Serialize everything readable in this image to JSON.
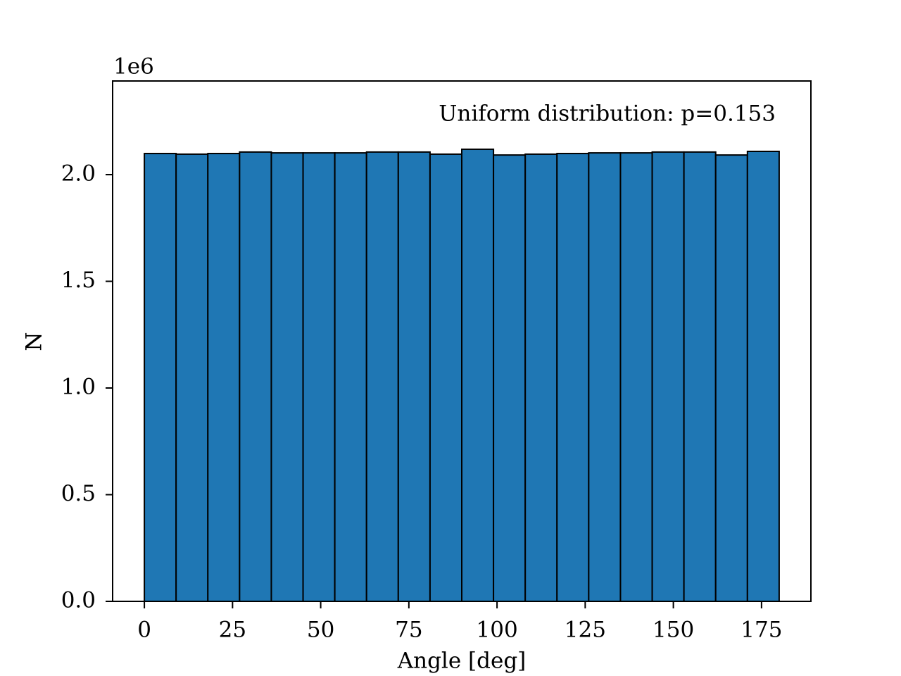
{
  "chart_data": {
    "type": "histogram",
    "xlabel": "Angle [deg]",
    "ylabel": "N",
    "y_offset_label": "1e6",
    "annotation": "Uniform distribution: p=0.153",
    "bins": [
      0,
      9,
      18,
      27,
      36,
      45,
      54,
      63,
      72,
      81,
      90,
      99,
      108,
      117,
      126,
      135,
      144,
      153,
      162,
      171,
      180
    ],
    "values": [
      2099000,
      2096000,
      2099000,
      2106000,
      2102000,
      2102000,
      2102000,
      2106000,
      2106000,
      2096000,
      2119000,
      2092000,
      2096000,
      2099000,
      2102000,
      2102000,
      2106000,
      2106000,
      2092000,
      2109000
    ],
    "color": "#1f77b4",
    "edgecolor": "#000000",
    "xlim": [
      -9,
      189
    ],
    "xticks": [
      0,
      25,
      50,
      75,
      100,
      125,
      150,
      175
    ],
    "ylim": [
      0,
      2439000
    ],
    "yticks": [
      {
        "value": 0,
        "label": "0.0"
      },
      {
        "value": 500000,
        "label": "0.5"
      },
      {
        "value": 1000000,
        "label": "1.0"
      },
      {
        "value": 1500000,
        "label": "1.5"
      },
      {
        "value": 2000000,
        "label": "2.0"
      }
    ],
    "grid": false
  }
}
